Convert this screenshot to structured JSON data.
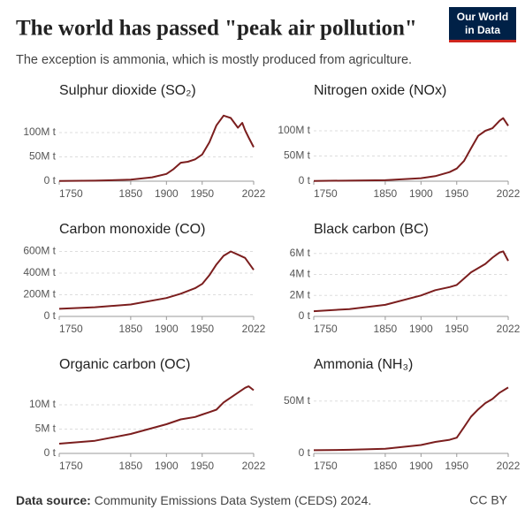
{
  "page": {
    "title": "The world has passed \"peak air pollution\"",
    "subtitle": "The exception is ammonia, which is mostly produced from agriculture.",
    "source_label": "Data source:",
    "source": "Community Emissions Data System (CEDS) 2024.",
    "license": "CC BY",
    "logo": [
      "Our World",
      "in Data"
    ]
  },
  "chart_data": [
    {
      "type": "line",
      "title": "Sulphur dioxide (SO₂)",
      "color": "#7b1e1e",
      "x": [
        1750,
        1800,
        1850,
        1880,
        1900,
        1910,
        1920,
        1930,
        1940,
        1950,
        1960,
        1970,
        1980,
        1990,
        2000,
        2006,
        2010,
        2015,
        2022
      ],
      "values": [
        0.5,
        1,
        3,
        8,
        15,
        25,
        38,
        40,
        45,
        55,
        80,
        115,
        135,
        130,
        110,
        120,
        105,
        90,
        70
      ],
      "xlim": [
        1750,
        2022
      ],
      "xticks": [
        1750,
        1850,
        1900,
        1950,
        2022
      ],
      "ylim": [
        0,
        140
      ],
      "yticks": [
        {
          "value": 0,
          "label": "0 t"
        },
        {
          "value": 50,
          "label": "50M t"
        },
        {
          "value": 100,
          "label": "100M t"
        }
      ],
      "grid": true
    },
    {
      "type": "line",
      "title": "Nitrogen oxide (NOx)",
      "color": "#7b1e1e",
      "x": [
        1750,
        1850,
        1900,
        1920,
        1940,
        1950,
        1960,
        1970,
        1980,
        1990,
        2000,
        2010,
        2015,
        2022
      ],
      "values": [
        0.5,
        2,
        6,
        10,
        18,
        25,
        40,
        65,
        90,
        100,
        105,
        120,
        125,
        110
      ],
      "xlim": [
        1750,
        2022
      ],
      "xticks": [
        1750,
        1850,
        1900,
        1950,
        2022
      ],
      "ylim": [
        0,
        135
      ],
      "yticks": [
        {
          "value": 0,
          "label": "0 t"
        },
        {
          "value": 50,
          "label": "50M t"
        },
        {
          "value": 100,
          "label": "100M t"
        }
      ],
      "grid": true
    },
    {
      "type": "line",
      "title": "Carbon monoxide (CO)",
      "color": "#7b1e1e",
      "x": [
        1750,
        1800,
        1850,
        1900,
        1920,
        1940,
        1950,
        1960,
        1970,
        1980,
        1990,
        2000,
        2010,
        2022
      ],
      "values": [
        70,
        85,
        110,
        170,
        210,
        260,
        300,
        380,
        480,
        560,
        600,
        570,
        540,
        430
      ],
      "xlim": [
        1750,
        2022
      ],
      "xticks": [
        1750,
        1850,
        1900,
        1950,
        2022
      ],
      "ylim": [
        0,
        620
      ],
      "yticks": [
        {
          "value": 0,
          "label": "0 t"
        },
        {
          "value": 200,
          "label": "200M t"
        },
        {
          "value": 400,
          "label": "400M t"
        },
        {
          "value": 600,
          "label": "600M t"
        }
      ],
      "grid": true
    },
    {
      "type": "line",
      "title": "Black carbon (BC)",
      "color": "#7b1e1e",
      "x": [
        1750,
        1800,
        1850,
        1900,
        1920,
        1940,
        1950,
        1960,
        1970,
        1980,
        1990,
        2000,
        2010,
        2015,
        2022
      ],
      "values": [
        0.5,
        0.7,
        1.1,
        2.0,
        2.5,
        2.8,
        3.0,
        3.6,
        4.2,
        4.6,
        5.0,
        5.6,
        6.1,
        6.2,
        5.3
      ],
      "xlim": [
        1750,
        2022
      ],
      "xticks": [
        1750,
        1850,
        1900,
        1950,
        2022
      ],
      "ylim": [
        0,
        6.4
      ],
      "yticks": [
        {
          "value": 0,
          "label": "0 t"
        },
        {
          "value": 2,
          "label": "2M t"
        },
        {
          "value": 4,
          "label": "4M t"
        },
        {
          "value": 6,
          "label": "6M t"
        }
      ],
      "grid": true
    },
    {
      "type": "line",
      "title": "Organic carbon (OC)",
      "color": "#7b1e1e",
      "x": [
        1750,
        1800,
        1850,
        1900,
        1920,
        1940,
        1950,
        1960,
        1970,
        1980,
        1990,
        2000,
        2010,
        2015,
        2022
      ],
      "values": [
        2,
        2.6,
        4,
        6,
        7,
        7.5,
        8,
        8.5,
        9,
        10.5,
        11.5,
        12.5,
        13.5,
        13.8,
        13
      ],
      "xlim": [
        1750,
        2022
      ],
      "xticks": [
        1750,
        1850,
        1900,
        1950,
        2022
      ],
      "ylim": [
        0,
        14
      ],
      "yticks": [
        {
          "value": 0,
          "label": "0 t"
        },
        {
          "value": 5,
          "label": "5M t"
        },
        {
          "value": 10,
          "label": "10M t"
        }
      ],
      "grid": true
    },
    {
      "type": "line",
      "title": "Ammonia (NH₃)",
      "color": "#7b1e1e",
      "x": [
        1750,
        1800,
        1850,
        1900,
        1920,
        1940,
        1950,
        1960,
        1970,
        1980,
        1990,
        2000,
        2010,
        2022
      ],
      "values": [
        3,
        3.5,
        4.5,
        8,
        11,
        13,
        15,
        25,
        35,
        42,
        48,
        52,
        58,
        63
      ],
      "xlim": [
        1750,
        2022
      ],
      "xticks": [
        1750,
        1850,
        1900,
        1950,
        2022
      ],
      "ylim": [
        0,
        65
      ],
      "yticks": [
        {
          "value": 0,
          "label": "0 t"
        },
        {
          "value": 50,
          "label": "50M t"
        }
      ],
      "grid": true
    }
  ]
}
